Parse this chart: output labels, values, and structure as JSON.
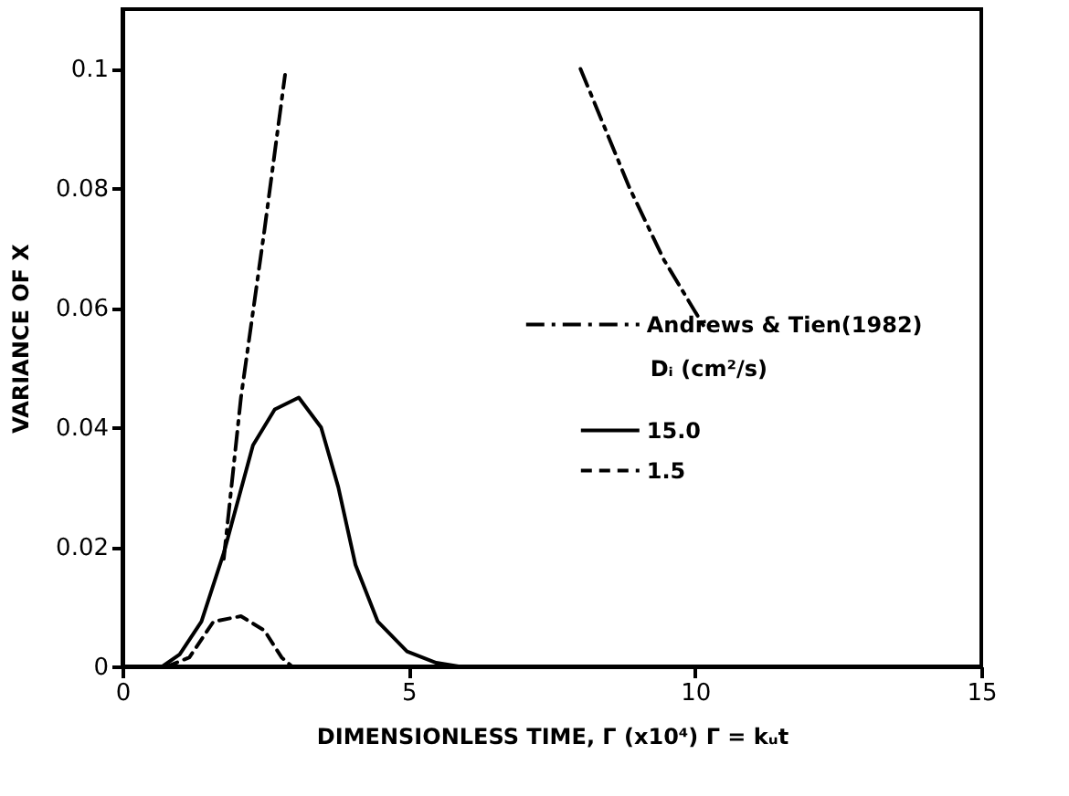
{
  "chart_data": {
    "type": "line",
    "xlabel": "DIMENSIONLESS TIME, Γ (x10⁴) Γ = kᵤt",
    "ylabel": "VARIANCE OF X",
    "xlim": [
      0,
      15
    ],
    "ylim": [
      0,
      0.11
    ],
    "xticks": [
      0,
      5,
      10,
      15
    ],
    "yticks": [
      0,
      0.02,
      0.04,
      0.06,
      0.08,
      0.1
    ],
    "grid": false,
    "legend": "right",
    "legend_title": "Dᵢ (cm²/s)",
    "series": [
      {
        "name": "Andrews & Tien(1982)",
        "color": "#000000",
        "line_style": "dashdot",
        "x": [
          1.77,
          2.07,
          2.48,
          2.84,
          null,
          8.0,
          8.86,
          9.46,
          10.15
        ],
        "values": [
          0.018,
          0.045,
          0.073,
          0.099,
          null,
          0.1,
          0.08,
          0.068,
          0.057
        ]
      },
      {
        "name": "15.0",
        "color": "#000000",
        "line_style": "solid",
        "x": [
          0.7,
          1.0,
          1.38,
          1.77,
          2.28,
          2.66,
          3.08,
          3.47,
          3.77,
          4.07,
          4.46,
          4.97,
          5.48,
          5.87
        ],
        "values": [
          0,
          0.002,
          0.0075,
          0.019,
          0.037,
          0.043,
          0.045,
          0.04,
          0.03,
          0.017,
          0.0075,
          0.0025,
          0.0006,
          0
        ]
      },
      {
        "name": "1.5",
        "color": "#000000",
        "line_style": "dashed",
        "x": [
          0.78,
          1.17,
          1.59,
          2.07,
          2.48,
          2.78,
          2.96
        ],
        "values": [
          0,
          0.0015,
          0.0075,
          0.0084,
          0.006,
          0.0015,
          0
        ]
      }
    ]
  }
}
